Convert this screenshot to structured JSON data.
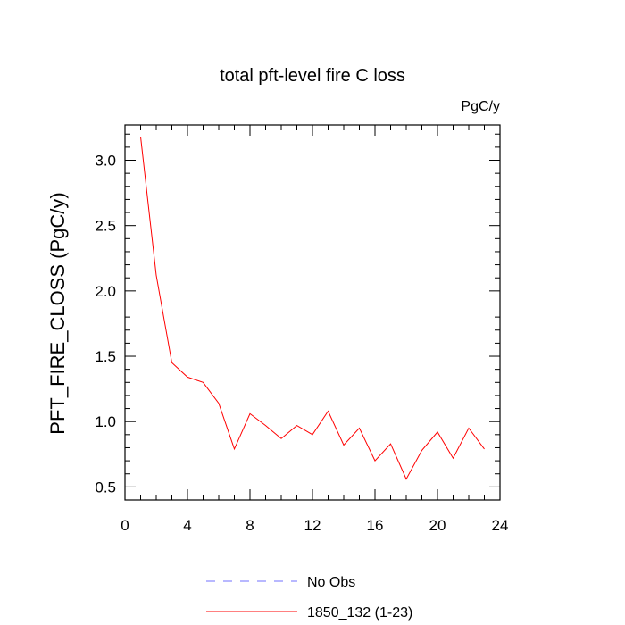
{
  "chart_data": {
    "type": "line",
    "title": "total pft-level fire C loss",
    "units": "PgC/y",
    "xlabel": "",
    "ylabel": "PFT_FIRE_CLOSS  (PgC/y)",
    "xlim": [
      0,
      24
    ],
    "ylim": [
      0.4,
      3.27
    ],
    "xticks": [
      0,
      4,
      8,
      12,
      16,
      20,
      24
    ],
    "yticks": [
      0.5,
      1.0,
      1.5,
      2.0,
      2.5,
      3.0
    ],
    "xtick_labels": [
      "0",
      "4",
      "8",
      "12",
      "16",
      "20",
      "24"
    ],
    "ytick_labels": [
      "0.5",
      "1.0",
      "1.5",
      "2.0",
      "2.5",
      "3.0"
    ],
    "grid": false,
    "legend_position": "bottom",
    "series": [
      {
        "name": "No Obs",
        "color": "#7070ff",
        "style": "dashed",
        "x": [],
        "values": []
      },
      {
        "name": "1850_132 (1-23)",
        "color": "#ff0000",
        "style": "solid",
        "x": [
          1,
          2,
          3,
          4,
          5,
          6,
          7,
          8,
          9,
          10,
          11,
          12,
          13,
          14,
          15,
          16,
          17,
          18,
          19,
          20,
          21,
          22,
          23
        ],
        "values": [
          3.18,
          2.12,
          1.45,
          1.34,
          1.3,
          1.14,
          0.79,
          1.06,
          0.97,
          0.87,
          0.97,
          0.9,
          1.08,
          0.82,
          0.95,
          0.7,
          0.83,
          0.56,
          0.78,
          0.92,
          0.72,
          0.95,
          0.79
        ]
      }
    ]
  }
}
